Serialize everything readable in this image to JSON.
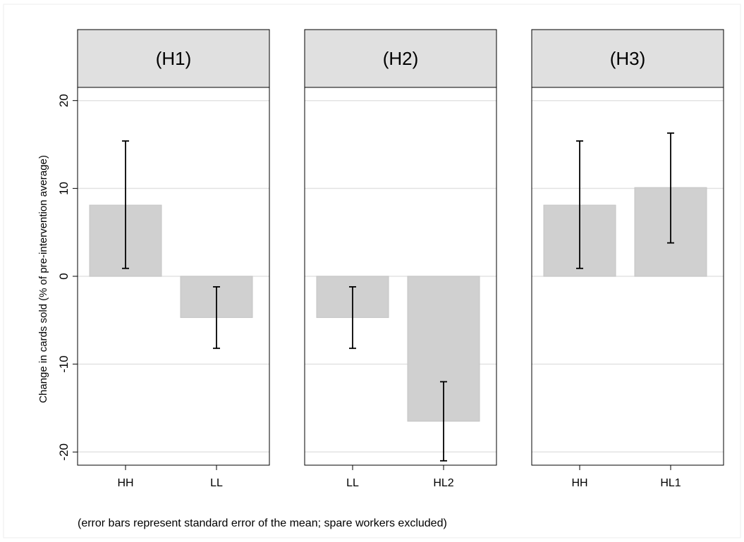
{
  "chart_data": {
    "type": "bar",
    "ylabel": "Change in cards sold (% of pre-intervention average)",
    "note": "(error bars represent standard error of the mean; spare workers excluded)",
    "ylim": [
      -21.5,
      21.5
    ],
    "yticks": [
      -20,
      -10,
      0,
      10,
      20
    ],
    "grid": true,
    "bar_color": "#d0d0d0",
    "strip_color": "#e0e0e0",
    "panels": [
      {
        "title": "(H1)",
        "categories": [
          "HH",
          "LL"
        ],
        "values": [
          8.1,
          -4.7
        ],
        "error_low": [
          0.9,
          -8.2
        ],
        "error_high": [
          15.4,
          -1.2
        ]
      },
      {
        "title": "(H2)",
        "categories": [
          "LL",
          "HL2"
        ],
        "values": [
          -4.7,
          -16.5
        ],
        "error_low": [
          -8.2,
          -21.0
        ],
        "error_high": [
          -1.2,
          -12.0
        ]
      },
      {
        "title": "(H3)",
        "categories": [
          "HH",
          "HL1"
        ],
        "values": [
          8.1,
          10.1
        ],
        "error_low": [
          0.9,
          3.8
        ],
        "error_high": [
          15.4,
          16.3
        ]
      }
    ]
  }
}
